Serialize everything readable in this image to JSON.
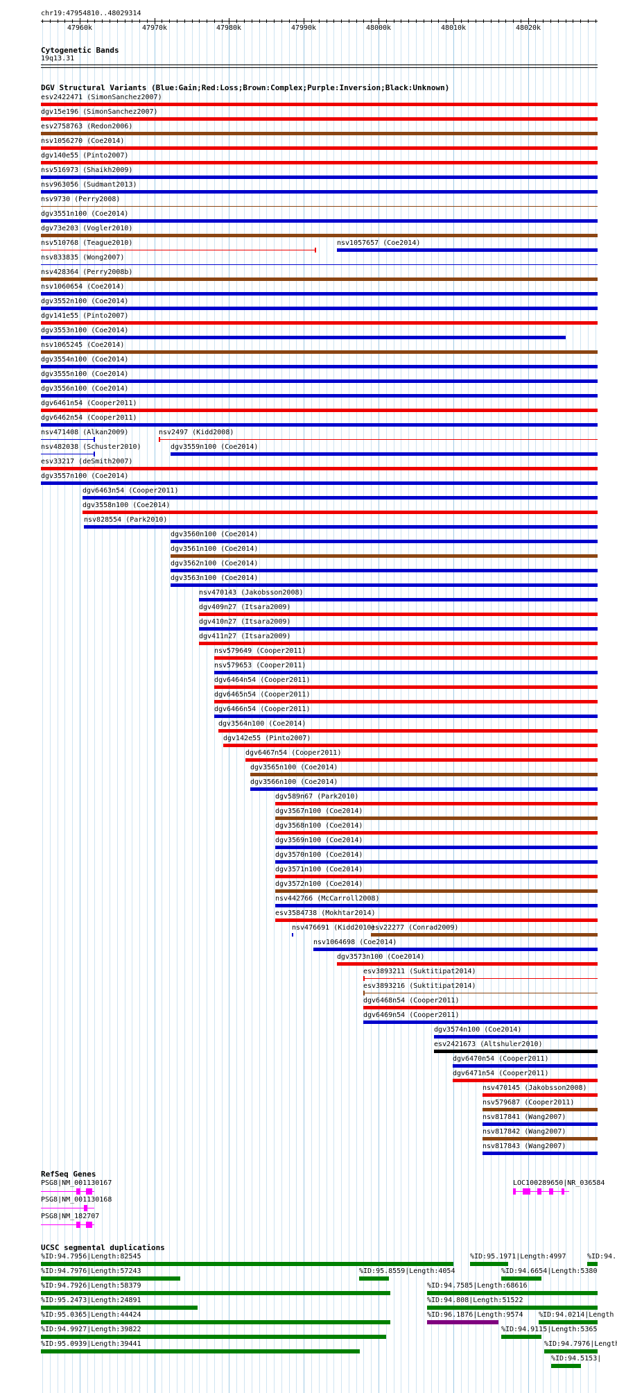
{
  "ruler": {
    "position": "chr19:47954810..48029314",
    "start": 47954810,
    "end": 48029314,
    "ticks": [
      "47960k",
      "47970k",
      "47980k",
      "47990k",
      "48000k",
      "48010k",
      "48020k"
    ],
    "tick_values": [
      47960000,
      47970000,
      47980000,
      47990000,
      48000000,
      48010000,
      48020000
    ]
  },
  "cytoband": {
    "title": "Cytogenetic Bands",
    "band": "19q13.31"
  },
  "dgv": {
    "title": "DGV Structural Variants (Blue:Gain;Red:Loss;Brown:Complex;Purple:Inversion;Black:Unknown)",
    "colors": {
      "gain": "#0000cc",
      "loss": "#ee0000",
      "complex": "#8b4513",
      "inversion": "#800080",
      "unknown": "#000000"
    },
    "features": [
      {
        "label": "esv2422471 (SimonSanchez2007)",
        "type": "loss",
        "start": 47954810,
        "end": 48029314,
        "row": 0
      },
      {
        "label": "dgv15e196 (SimonSanchez2007)",
        "type": "loss",
        "start": 47954810,
        "end": 48029314,
        "row": 1
      },
      {
        "label": "esv2758763 (Redon2006)",
        "type": "complex",
        "start": 47954810,
        "end": 48029314,
        "row": 2
      },
      {
        "label": "nsv1056270 (Coe2014)",
        "type": "loss",
        "start": 47954810,
        "end": 48029314,
        "row": 3
      },
      {
        "label": "dgv140e55 (Pinto2007)",
        "type": "loss",
        "start": 47954810,
        "end": 48029314,
        "row": 4
      },
      {
        "label": "nsv516973 (Shaikh2009)",
        "type": "gain",
        "start": 47954810,
        "end": 48029314,
        "row": 5
      },
      {
        "label": "nsv963056 (Sudmant2013)",
        "type": "gain",
        "start": 47954810,
        "end": 48029314,
        "row": 6
      },
      {
        "label": "nsv9730 (Perry2008)",
        "type": "complex",
        "start": 47954810,
        "end": 48029314,
        "row": 7,
        "thin": true
      },
      {
        "label": "dgv3551n100 (Coe2014)",
        "type": "gain",
        "start": 47954810,
        "end": 48029314,
        "row": 8
      },
      {
        "label": "dgv73e203 (Vogler2010)",
        "type": "complex",
        "start": 47954810,
        "end": 48029314,
        "row": 9
      },
      {
        "label": "nsv510768 (Teague2010)",
        "type": "loss",
        "start": 47954810,
        "end": 47991500,
        "row": 10,
        "thin": true
      },
      {
        "label": "nsv1057657 (Coe2014)",
        "type": "gain",
        "start": 47994400,
        "end": 48029314,
        "row": 10
      },
      {
        "label": "nsv833835 (Wong2007)",
        "type": "gain",
        "start": 47954810,
        "end": 48029314,
        "row": 11,
        "thin": true
      },
      {
        "label": "nsv428364 (Perry2008b)",
        "type": "complex",
        "start": 47954810,
        "end": 48029314,
        "row": 12
      },
      {
        "label": "nsv1060654 (Coe2014)",
        "type": "gain",
        "start": 47954810,
        "end": 48029314,
        "row": 13
      },
      {
        "label": "dgv3552n100 (Coe2014)",
        "type": "gain",
        "start": 47954810,
        "end": 48029314,
        "row": 14
      },
      {
        "label": "dgv141e55 (Pinto2007)",
        "type": "loss",
        "start": 47954810,
        "end": 48029314,
        "row": 15
      },
      {
        "label": "dgv3553n100 (Coe2014)",
        "type": "gain",
        "start": 47954810,
        "end": 48025000,
        "row": 16
      },
      {
        "label": "nsv1065245 (Coe2014)",
        "type": "complex",
        "start": 47954810,
        "end": 48029314,
        "row": 17
      },
      {
        "label": "dgv3554n100 (Coe2014)",
        "type": "gain",
        "start": 47954810,
        "end": 48029314,
        "row": 18
      },
      {
        "label": "dgv3555n100 (Coe2014)",
        "type": "gain",
        "start": 47954810,
        "end": 48029314,
        "row": 19
      },
      {
        "label": "dgv3556n100 (Coe2014)",
        "type": "gain",
        "start": 47954810,
        "end": 48029314,
        "row": 20
      },
      {
        "label": "dgv6461n54 (Cooper2011)",
        "type": "loss",
        "start": 47954810,
        "end": 48029314,
        "row": 21
      },
      {
        "label": "dgv6462n54 (Cooper2011)",
        "type": "gain",
        "start": 47954810,
        "end": 48029314,
        "row": 22
      },
      {
        "label": "nsv471408 (Alkan2009)",
        "type": "gain",
        "start": 47954810,
        "end": 47961900,
        "row": 23,
        "thin": true
      },
      {
        "label": "nsv2497 (Kidd2008)",
        "type": "loss",
        "start": 47970600,
        "end": 48029314,
        "row": 23,
        "thin": true
      },
      {
        "label": "nsv482038 (Schuster2010)",
        "type": "gain",
        "start": 47954810,
        "end": 47961900,
        "row": 24,
        "thin": true
      },
      {
        "label": "dgv3559n100 (Coe2014)",
        "type": "gain",
        "start": 47972200,
        "end": 48029314,
        "row": 24
      },
      {
        "label": "esv33217 (deSmith2007)",
        "type": "loss",
        "start": 47954810,
        "end": 48029314,
        "row": 25
      },
      {
        "label": "dgv3557n100 (Coe2014)",
        "type": "gain",
        "start": 47954810,
        "end": 48029314,
        "row": 26
      },
      {
        "label": "dgv6463n54 (Cooper2011)",
        "type": "gain",
        "start": 47960400,
        "end": 48029314,
        "row": 27
      },
      {
        "label": "dgv3558n100 (Coe2014)",
        "type": "loss",
        "start": 47960400,
        "end": 48029314,
        "row": 28
      },
      {
        "label": "nsv828554 (Park2010)",
        "type": "gain",
        "start": 47960600,
        "end": 48029314,
        "row": 29
      },
      {
        "label": "dgv3560n100 (Coe2014)",
        "type": "gain",
        "start": 47972200,
        "end": 48029314,
        "row": 30
      },
      {
        "label": "dgv3561n100 (Coe2014)",
        "type": "complex",
        "start": 47972200,
        "end": 48029314,
        "row": 31
      },
      {
        "label": "dgv3562n100 (Coe2014)",
        "type": "gain",
        "start": 47972200,
        "end": 48029314,
        "row": 32
      },
      {
        "label": "dgv3563n100 (Coe2014)",
        "type": "gain",
        "start": 47972200,
        "end": 48029314,
        "row": 33
      },
      {
        "label": "nsv470143 (Jakobsson2008)",
        "type": "gain",
        "start": 47976000,
        "end": 48029314,
        "row": 34
      },
      {
        "label": "dgv409n27 (Itsara2009)",
        "type": "loss",
        "start": 47976000,
        "end": 48029314,
        "row": 35
      },
      {
        "label": "dgv410n27 (Itsara2009)",
        "type": "gain",
        "start": 47976000,
        "end": 48029314,
        "row": 36
      },
      {
        "label": "dgv411n27 (Itsara2009)",
        "type": "loss",
        "start": 47976000,
        "end": 48029314,
        "row": 37
      },
      {
        "label": "nsv579649 (Cooper2011)",
        "type": "loss",
        "start": 47978000,
        "end": 48029314,
        "row": 38
      },
      {
        "label": "nsv579653 (Cooper2011)",
        "type": "gain",
        "start": 47978000,
        "end": 48029314,
        "row": 39
      },
      {
        "label": "dgv6464n54 (Cooper2011)",
        "type": "loss",
        "start": 47978000,
        "end": 48029314,
        "row": 40
      },
      {
        "label": "dgv6465n54 (Cooper2011)",
        "type": "loss",
        "start": 47978000,
        "end": 48029314,
        "row": 41
      },
      {
        "label": "dgv6466n54 (Cooper2011)",
        "type": "gain",
        "start": 47978000,
        "end": 48029314,
        "row": 42
      },
      {
        "label": "dgv3564n100 (Coe2014)",
        "type": "loss",
        "start": 47978600,
        "end": 48029314,
        "row": 43
      },
      {
        "label": "dgv142e55 (Pinto2007)",
        "type": "loss",
        "start": 47979200,
        "end": 48029314,
        "row": 44
      },
      {
        "label": "dgv6467n54 (Cooper2011)",
        "type": "loss",
        "start": 47982200,
        "end": 48029314,
        "row": 45
      },
      {
        "label": "dgv3565n100 (Coe2014)",
        "type": "complex",
        "start": 47982800,
        "end": 48029314,
        "row": 46
      },
      {
        "label": "dgv3566n100 (Coe2014)",
        "type": "gain",
        "start": 47982800,
        "end": 48029314,
        "row": 47
      },
      {
        "label": "dgv589n67 (Park2010)",
        "type": "loss",
        "start": 47986200,
        "end": 48029314,
        "row": 48
      },
      {
        "label": "dgv3567n100 (Coe2014)",
        "type": "complex",
        "start": 47986200,
        "end": 48029314,
        "row": 49
      },
      {
        "label": "dgv3568n100 (Coe2014)",
        "type": "loss",
        "start": 47986200,
        "end": 48029314,
        "row": 50
      },
      {
        "label": "dgv3569n100 (Coe2014)",
        "type": "gain",
        "start": 47986200,
        "end": 48029314,
        "row": 51
      },
      {
        "label": "dgv3570n100 (Coe2014)",
        "type": "gain",
        "start": 47986200,
        "end": 48029314,
        "row": 52
      },
      {
        "label": "dgv3571n100 (Coe2014)",
        "type": "loss",
        "start": 47986200,
        "end": 48029314,
        "row": 53
      },
      {
        "label": "dgv3572n100 (Coe2014)",
        "type": "complex",
        "start": 47986200,
        "end": 48029314,
        "row": 54
      },
      {
        "label": "nsv442766 (McCarroll2008)",
        "type": "gain",
        "start": 47986200,
        "end": 48029314,
        "row": 55
      },
      {
        "label": "esv3584738 (Mokhtar2014)",
        "type": "loss",
        "start": 47986200,
        "end": 48029314,
        "row": 56
      },
      {
        "label": "nsv476691 (Kidd2010)",
        "type": "gain",
        "start": 47988400,
        "end": 47988600,
        "row": 57
      },
      {
        "label": "esv22277 (Conrad2009)",
        "type": "complex",
        "start": 47999000,
        "end": 48029314,
        "row": 57
      },
      {
        "label": "nsv1064698 (Coe2014)",
        "type": "gain",
        "start": 47991300,
        "end": 48029314,
        "row": 58
      },
      {
        "label": "dgv3573n100 (Coe2014)",
        "type": "loss",
        "start": 47994400,
        "end": 48029314,
        "row": 59
      },
      {
        "label": "esv3893211 (Suktitipat2014)",
        "type": "loss",
        "start": 47998000,
        "end": 48029314,
        "row": 60,
        "thin": true
      },
      {
        "label": "esv3893216 (Suktitipat2014)",
        "type": "complex",
        "start": 47998000,
        "end": 48029314,
        "row": 61,
        "thin": true
      },
      {
        "label": "dgv6468n54 (Cooper2011)",
        "type": "loss",
        "start": 47998000,
        "end": 48029314,
        "row": 62
      },
      {
        "label": "dgv6469n54 (Cooper2011)",
        "type": "gain",
        "start": 47998000,
        "end": 48029314,
        "row": 63
      },
      {
        "label": "dgv3574n100 (Coe2014)",
        "type": "gain",
        "start": 48007400,
        "end": 48029314,
        "row": 64
      },
      {
        "label": "esv2421673 (Altshuler2010)",
        "type": "unknown",
        "start": 48007400,
        "end": 48029314,
        "row": 65
      },
      {
        "label": "dgv6470n54 (Cooper2011)",
        "type": "gain",
        "start": 48009900,
        "end": 48029314,
        "row": 66
      },
      {
        "label": "dgv6471n54 (Cooper2011)",
        "type": "loss",
        "start": 48009900,
        "end": 48029314,
        "row": 67
      },
      {
        "label": "nsv470145 (Jakobsson2008)",
        "type": "loss",
        "start": 48013900,
        "end": 48029314,
        "row": 68
      },
      {
        "label": "nsv579687 (Cooper2011)",
        "type": "complex",
        "start": 48013900,
        "end": 48029314,
        "row": 69
      },
      {
        "label": "nsv817841 (Wang2007)",
        "type": "gain",
        "start": 48013900,
        "end": 48029314,
        "row": 70
      },
      {
        "label": "nsv817842 (Wang2007)",
        "type": "complex",
        "start": 48013900,
        "end": 48029314,
        "row": 71
      },
      {
        "label": "nsv817843 (Wang2007)",
        "type": "gain",
        "start": 48013900,
        "end": 48029314,
        "row": 72
      }
    ]
  },
  "refseq": {
    "title": "RefSeq Genes",
    "color": "#ff00ff",
    "genes": [
      {
        "label": "PSG8|NM_001130167",
        "start": 47954810,
        "end": 47962000,
        "exons": [
          [
            47959500,
            47960100
          ],
          [
            47960800,
            47961600
          ]
        ],
        "row": 0
      },
      {
        "label": "PSG8|NM_001130168",
        "start": 47954810,
        "end": 47962000,
        "exons": [
          [
            47960600,
            47961100
          ]
        ],
        "row": 1
      },
      {
        "label": "PSG8|NM_182707",
        "start": 47954810,
        "end": 47962000,
        "exons": [
          [
            47959500,
            47960100
          ],
          [
            47960800,
            47961600
          ]
        ],
        "row": 2
      },
      {
        "label": "LOC100289650|NR_036584",
        "start": 48018000,
        "end": 48025500,
        "exons": [
          [
            48018000,
            48018400
          ],
          [
            48019300,
            48020300
          ],
          [
            48021200,
            48021800
          ],
          [
            48022800,
            48023400
          ],
          [
            48024500,
            48024900
          ]
        ],
        "row": 0
      }
    ]
  },
  "segdups": {
    "title": "UCSC segmental duplications",
    "features": [
      {
        "label": "%ID:94.7956|Length:82545",
        "start": 47954810,
        "end": 48010000,
        "row": 0,
        "color": "#008000"
      },
      {
        "label": "%ID:95.1971|Length:4997",
        "start": 48012200,
        "end": 48017300,
        "row": 0,
        "color": "#008000"
      },
      {
        "label": "%ID:94.",
        "start": 48027900,
        "end": 48029314,
        "row": 0,
        "color": "#008000"
      },
      {
        "label": "%ID:94.7976|Length:57243",
        "start": 47954810,
        "end": 47973500,
        "row": 1,
        "color": "#008000"
      },
      {
        "label": "%ID:95.8559|Length:4054",
        "start": 47997400,
        "end": 48001400,
        "row": 1,
        "color": "#008000"
      },
      {
        "label": "%ID:94.6654|Length:5380",
        "start": 48016400,
        "end": 48021800,
        "row": 1,
        "color": "#008000"
      },
      {
        "label": "%ID:94.7926|Length:58379",
        "start": 47954810,
        "end": 48001600,
        "row": 2,
        "color": "#008000"
      },
      {
        "label": "%ID:94.7585|Length:68616",
        "start": 48006500,
        "end": 48029314,
        "row": 2,
        "color": "#008000"
      },
      {
        "label": "%ID:95.2473|Length:24891",
        "start": 47954810,
        "end": 47975800,
        "row": 3,
        "color": "#008000"
      },
      {
        "label": "%ID:94.808|Length:51522",
        "start": 48006500,
        "end": 48029314,
        "row": 3,
        "color": "#008000"
      },
      {
        "label": "%ID:95.0365|Length:44424",
        "start": 47954810,
        "end": 48001600,
        "row": 4,
        "color": "#008000"
      },
      {
        "label": "%ID:96.1876|Length:9574",
        "start": 48006500,
        "end": 48016100,
        "row": 4,
        "color": "#800080"
      },
      {
        "label": "%ID:94.0214|Length",
        "start": 48021400,
        "end": 48029314,
        "row": 4,
        "color": "#008000"
      },
      {
        "label": "%ID:94.9927|Length:39822",
        "start": 47954810,
        "end": 48001000,
        "row": 5,
        "color": "#008000"
      },
      {
        "label": "%ID:94.9115|Length:5365",
        "start": 48016400,
        "end": 48021800,
        "row": 5,
        "color": "#008000"
      },
      {
        "label": "%ID:95.0939|Length:39441",
        "start": 47954810,
        "end": 47997500,
        "row": 6,
        "color": "#008000"
      },
      {
        "label": "%ID:94.7976|Length",
        "start": 48022200,
        "end": 48029314,
        "row": 6,
        "color": "#008000"
      },
      {
        "label": "%ID:94.5153|",
        "start": 48023100,
        "end": 48027100,
        "row": 7,
        "color": "#008000"
      }
    ]
  }
}
